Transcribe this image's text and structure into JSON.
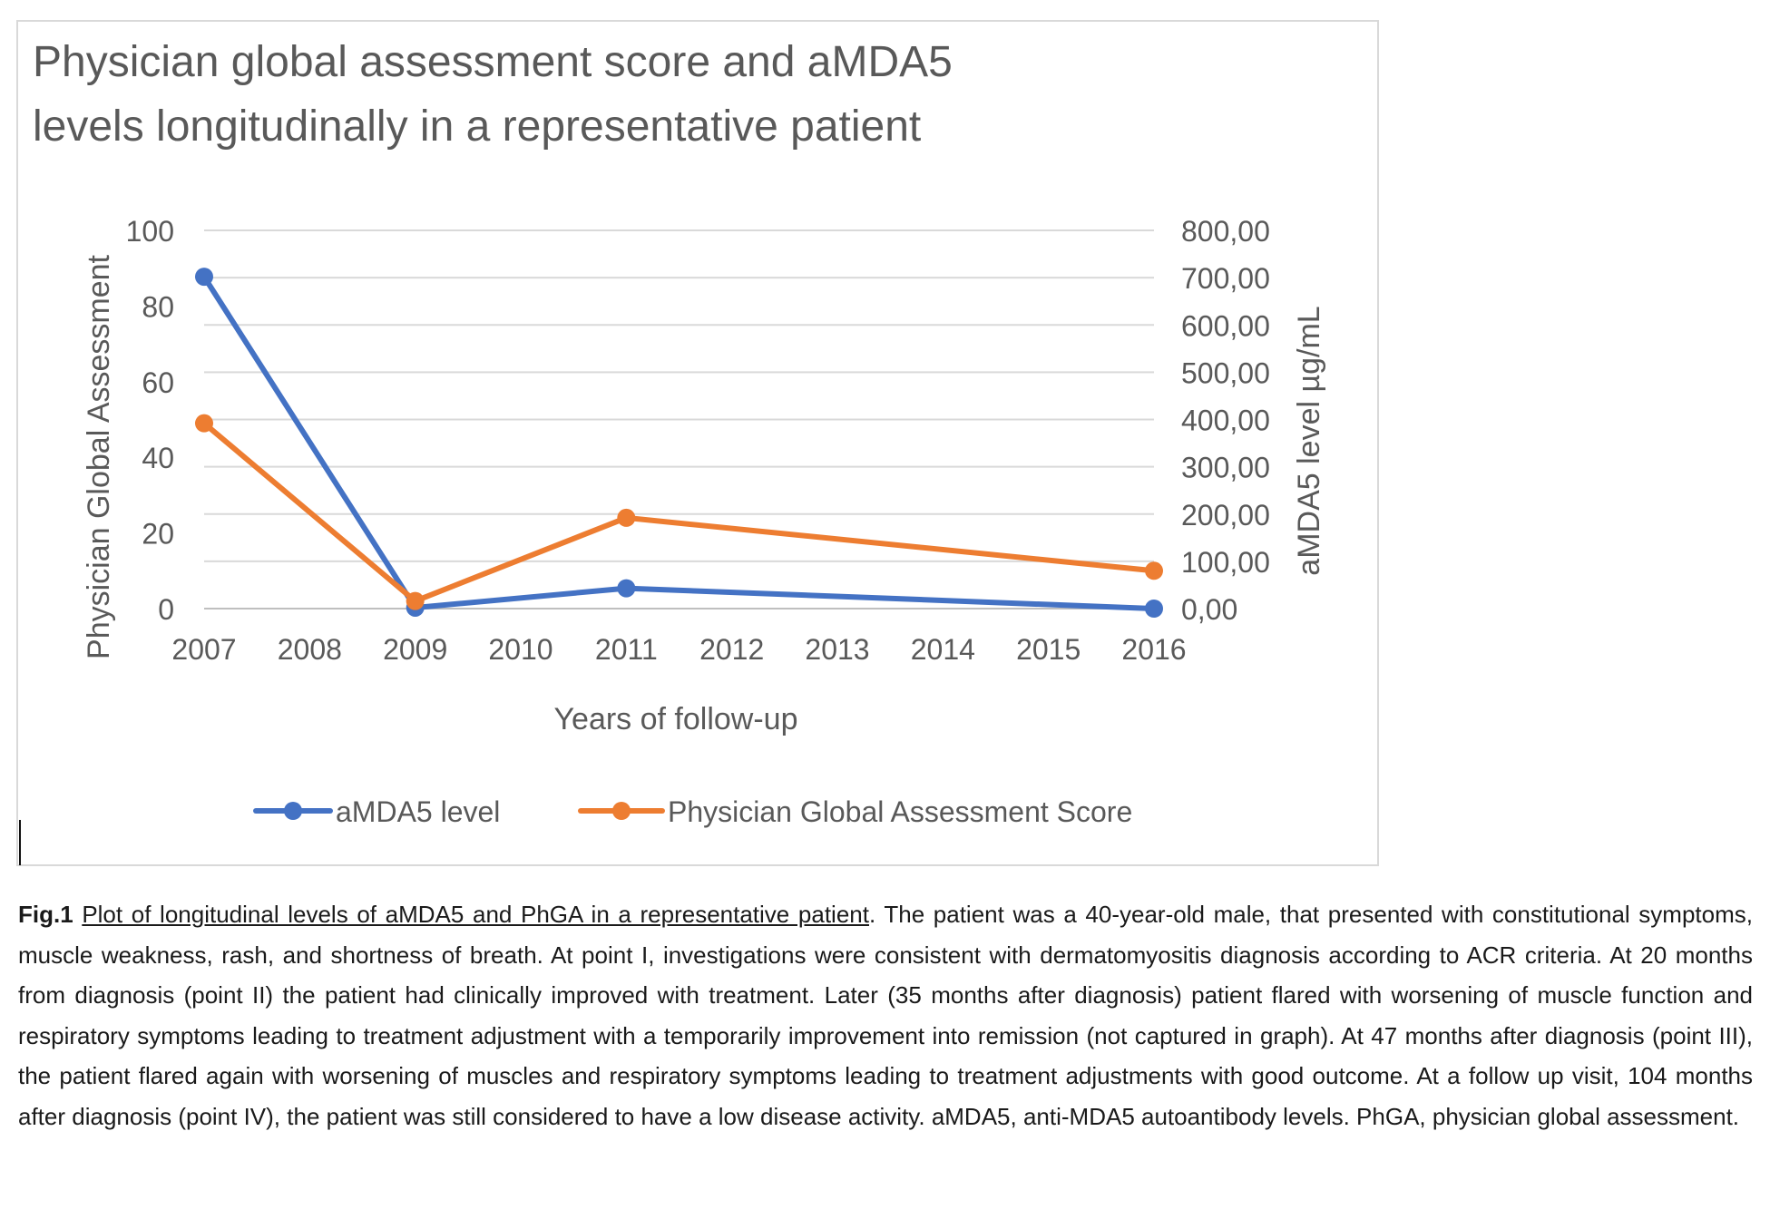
{
  "chart_data": {
    "type": "line",
    "title": "Physician global assessment  score and aMDA5 levels longitudinally in a representative patient",
    "title_lines": [
      "Physician global assessment  score and aMDA5",
      "levels longitudinally in a representative patient"
    ],
    "xlabel": "Years of follow-up",
    "ylabel_left": "Physician Global Assessment",
    "ylabel_right": "aMDA5 level µg/mL",
    "categories": [
      "2007",
      "2008",
      "2009",
      "2010",
      "2011",
      "2012",
      "2013",
      "2014",
      "2015",
      "2016"
    ],
    "y_left": {
      "min": 0,
      "max": 100,
      "ticks": [
        "0",
        "20",
        "40",
        "60",
        "80",
        "100"
      ]
    },
    "y_right": {
      "min": 0,
      "max": 800,
      "ticks": [
        "0,00",
        "100,00",
        "200,00",
        "300,00",
        "400,00",
        "500,00",
        "600,00",
        "700,00",
        "800,00"
      ]
    },
    "grid": true,
    "legend_position": "bottom",
    "series": [
      {
        "name": "aMDA5 level",
        "axis": "right",
        "color": "#4472c4",
        "points": [
          {
            "x": "2007",
            "y": 702
          },
          {
            "x": "2009",
            "y": 2
          },
          {
            "x": "2011",
            "y": 43
          },
          {
            "x": "2016",
            "y": 0
          }
        ]
      },
      {
        "name": "Physician Global Assessment Score",
        "axis": "left",
        "color": "#ed7d31",
        "points": [
          {
            "x": "2007",
            "y": 49
          },
          {
            "x": "2009",
            "y": 2
          },
          {
            "x": "2011",
            "y": 24
          },
          {
            "x": "2016",
            "y": 10
          }
        ]
      }
    ]
  },
  "caption": {
    "fig_label": "Fig.1",
    "fig_title": "Plot of longitudinal levels of aMDA5 and PhGA in a representative patient",
    "text": ". The patient was a 40-year-old male, that presented with constitutional symptoms, muscle weakness, rash, and shortness of breath. At point I, investigations were consistent with dermatomyositis diagnosis according to ACR criteria. At 20 months from diagnosis (point II) the patient had clinically improved with treatment. Later (35 months after diagnosis) patient flared with worsening of muscle function and respiratory symptoms leading to treatment adjustment with a temporarily improvement into remission (not captured in graph). At 47 months after diagnosis (point III), the patient flared again with worsening of muscles and respiratory symptoms leading to treatment adjustments with good outcome. At a follow up visit, 104 months after diagnosis (point IV), the patient was still considered to have a low disease activity. aMDA5, anti-MDA5 autoantibody levels. PhGA, physician global assessment."
  }
}
